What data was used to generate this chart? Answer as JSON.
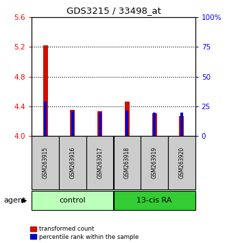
{
  "title": "GDS3215 / 33498_at",
  "samples": [
    "GSM263915",
    "GSM263916",
    "GSM263917",
    "GSM263918",
    "GSM263919",
    "GSM263920"
  ],
  "red_values": [
    5.22,
    4.35,
    4.33,
    4.46,
    4.305,
    4.27
  ],
  "blue_values": [
    4.46,
    4.33,
    4.315,
    4.345,
    4.315,
    4.315
  ],
  "ylim_left": [
    4.0,
    5.6
  ],
  "ylim_right": [
    0,
    100
  ],
  "yticks_left": [
    4.0,
    4.4,
    4.8,
    5.2,
    5.6
  ],
  "yticks_right": [
    0,
    25,
    50,
    75,
    100
  ],
  "ytick_labels_right": [
    "0",
    "25",
    "50",
    "75",
    "100%"
  ],
  "red_color": "#cc1100",
  "blue_color": "#0000cc",
  "control_color": "#bbffbb",
  "ra_color": "#33cc33",
  "sample_bg_color": "#cccccc",
  "group_label_control": "control",
  "group_label_ra": "13-cis RA",
  "legend_red": "transformed count",
  "legend_blue": "percentile rank within the sample",
  "agent_label": "agent",
  "red_bar_width": 0.18,
  "blue_bar_width": 0.1,
  "gridline_values": [
    4.4,
    4.8,
    5.2
  ],
  "n_control": 3,
  "n_ra": 3
}
